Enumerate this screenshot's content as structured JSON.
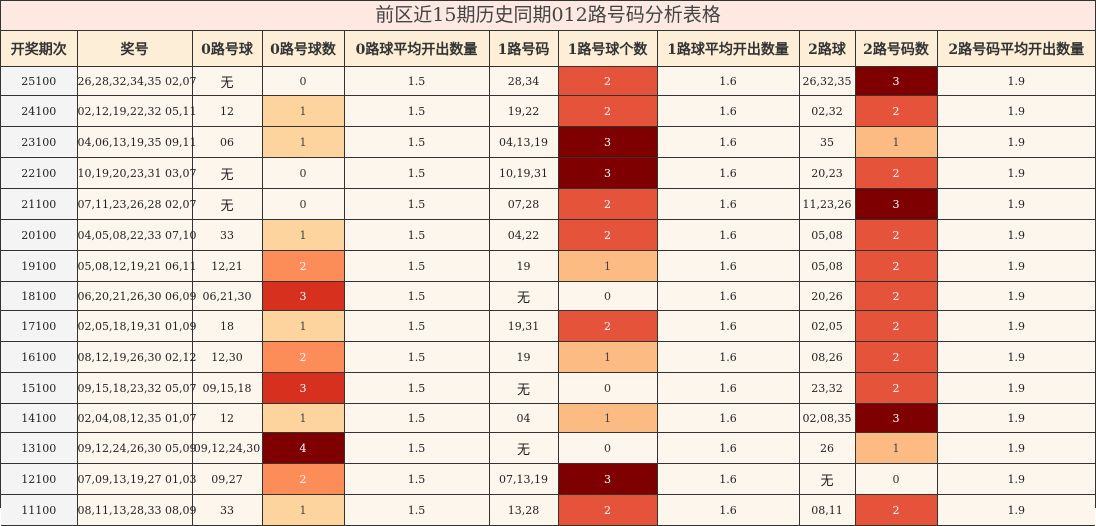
{
  "title": "前区近15期历史同期012路号码分析表格",
  "headers": [
    "开奖期次",
    "奖号",
    "0路号球",
    "0路号球数",
    "0路球平均开出数量",
    "1路号码",
    "1路号球个数",
    "1路球平均开出数量",
    "2路球",
    "2路号码数",
    "2路号码平均开出数量"
  ],
  "rows": [
    {
      "issue": "25100",
      "numbers": "26,28,32,34,35 02,07",
      "r0": "无",
      "r0c": "0",
      "r0avg": "1.5",
      "r1": "28,34",
      "r1c": "2",
      "r1avg": "1.6",
      "r2": "26,32,35",
      "r2c": "3",
      "r2avg": "1.9"
    },
    {
      "issue": "24100",
      "numbers": "02,12,19,22,32 05,11",
      "r0": "12",
      "r0c": "1",
      "r0avg": "1.5",
      "r1": "19,22",
      "r1c": "2",
      "r1avg": "1.6",
      "r2": "02,32",
      "r2c": "2",
      "r2avg": "1.9"
    },
    {
      "issue": "23100",
      "numbers": "04,06,13,19,35 09,11",
      "r0": "06",
      "r0c": "1",
      "r0avg": "1.5",
      "r1": "04,13,19",
      "r1c": "3",
      "r1avg": "1.6",
      "r2": "35",
      "r2c": "1",
      "r2avg": "1.9"
    },
    {
      "issue": "22100",
      "numbers": "10,19,20,23,31 03,07",
      "r0": "无",
      "r0c": "0",
      "r0avg": "1.5",
      "r1": "10,19,31",
      "r1c": "3",
      "r1avg": "1.6",
      "r2": "20,23",
      "r2c": "2",
      "r2avg": "1.9"
    },
    {
      "issue": "21100",
      "numbers": "07,11,23,26,28 02,07",
      "r0": "无",
      "r0c": "0",
      "r0avg": "1.5",
      "r1": "07,28",
      "r1c": "2",
      "r1avg": "1.6",
      "r2": "11,23,26",
      "r2c": "3",
      "r2avg": "1.9"
    },
    {
      "issue": "20100",
      "numbers": "04,05,08,22,33 07,10",
      "r0": "33",
      "r0c": "1",
      "r0avg": "1.5",
      "r1": "04,22",
      "r1c": "2",
      "r1avg": "1.6",
      "r2": "05,08",
      "r2c": "2",
      "r2avg": "1.9"
    },
    {
      "issue": "19100",
      "numbers": "05,08,12,19,21 06,11",
      "r0": "12,21",
      "r0c": "2",
      "r0avg": "1.5",
      "r1": "19",
      "r1c": "1",
      "r1avg": "1.6",
      "r2": "05,08",
      "r2c": "2",
      "r2avg": "1.9"
    },
    {
      "issue": "18100",
      "numbers": "06,20,21,26,30 06,09",
      "r0": "06,21,30",
      "r0c": "3",
      "r0avg": "1.5",
      "r1": "无",
      "r1c": "0",
      "r1avg": "1.6",
      "r2": "20,26",
      "r2c": "2",
      "r2avg": "1.9"
    },
    {
      "issue": "17100",
      "numbers": "02,05,18,19,31 01,09",
      "r0": "18",
      "r0c": "1",
      "r0avg": "1.5",
      "r1": "19,31",
      "r1c": "2",
      "r1avg": "1.6",
      "r2": "02,05",
      "r2c": "2",
      "r2avg": "1.9"
    },
    {
      "issue": "16100",
      "numbers": "08,12,19,26,30 02,12",
      "r0": "12,30",
      "r0c": "2",
      "r0avg": "1.5",
      "r1": "19",
      "r1c": "1",
      "r1avg": "1.6",
      "r2": "08,26",
      "r2c": "2",
      "r2avg": "1.9"
    },
    {
      "issue": "15100",
      "numbers": "09,15,18,23,32 05,07",
      "r0": "09,15,18",
      "r0c": "3",
      "r0avg": "1.5",
      "r1": "无",
      "r1c": "0",
      "r1avg": "1.6",
      "r2": "23,32",
      "r2c": "2",
      "r2avg": "1.9"
    },
    {
      "issue": "14100",
      "numbers": "02,04,08,12,35 01,07",
      "r0": "12",
      "r0c": "1",
      "r0avg": "1.5",
      "r1": "04",
      "r1c": "1",
      "r1avg": "1.6",
      "r2": "02,08,35",
      "r2c": "3",
      "r2avg": "1.9"
    },
    {
      "issue": "13100",
      "numbers": "09,12,24,26,30 05,09",
      "r0": "09,12,24,30",
      "r0c": "4",
      "r0avg": "1.5",
      "r1": "无",
      "r1c": "0",
      "r1avg": "1.6",
      "r2": "26",
      "r2c": "1",
      "r2avg": "1.9"
    },
    {
      "issue": "12100",
      "numbers": "07,09,13,19,27 01,03",
      "r0": "09,27",
      "r0c": "2",
      "r0avg": "1.5",
      "r1": "07,13,19",
      "r1c": "3",
      "r1avg": "1.6",
      "r2": "无",
      "r2c": "0",
      "r2avg": "1.9"
    },
    {
      "issue": "11100",
      "numbers": "08,11,13,28,33 08,09",
      "r0": "33",
      "r0c": "1",
      "r0avg": "1.5",
      "r1": "13,28",
      "r1c": "2",
      "r1avg": "1.6",
      "r2": "08,11",
      "r2c": "2",
      "r2avg": "1.9"
    }
  ]
}
